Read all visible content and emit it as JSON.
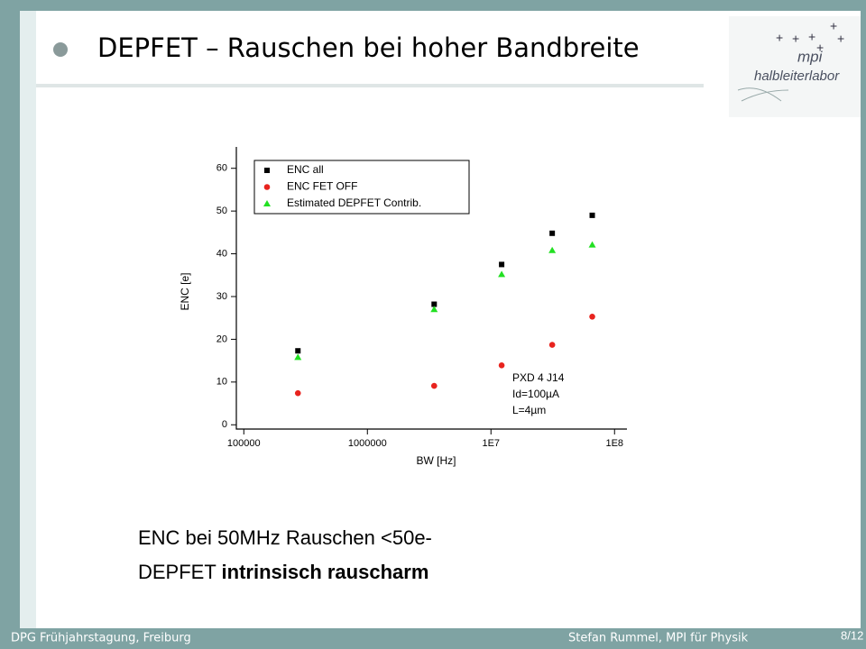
{
  "slide": {
    "title": "DEPFET – Rauschen bei hoher Bandbreite",
    "logo": {
      "line1": "mpi",
      "line2": "halbleiterlabor"
    },
    "body": [
      {
        "text": "ENC bei 50MHz  Rauschen  <50e-"
      },
      {
        "text": "DEPFET ",
        "bold": "intrinsisch rauscharm"
      }
    ],
    "footer": {
      "left": "DPG Frühjahrstagung, Freiburg",
      "right": "Stefan Rummel, MPI für Physik",
      "page": "8/12"
    }
  },
  "chart_data": {
    "type": "scatter",
    "xlabel": "BW [Hz]",
    "ylabel": "ENC [e]",
    "xscale": "log",
    "xlim": [
      87000,
      126000000
    ],
    "ylim": [
      -1,
      65
    ],
    "xticks": [
      100000,
      1000000,
      {
        "value": 10000000,
        "label": "1E7"
      },
      {
        "value": 100000000,
        "label": "1E8"
      }
    ],
    "yticks": [
      0,
      10,
      20,
      30,
      40,
      50,
      60
    ],
    "legend": "upper left",
    "annotation": [
      "PXD 4 J14",
      "Id=100µA",
      "L=4µm"
    ],
    "series": [
      {
        "name": "ENC all",
        "color": "#000000",
        "marker": "square",
        "x": [
          274000,
          3470000,
          12200000,
          31300000,
          66000000
        ],
        "values": [
          17.3,
          28.2,
          37.5,
          44.8,
          49
        ]
      },
      {
        "name": "ENC FET OFF",
        "color": "#e8231e",
        "marker": "circle",
        "x": [
          274000,
          3470000,
          12200000,
          31300000,
          66000000
        ],
        "values": [
          7.4,
          9.1,
          13.9,
          18.7,
          25.3
        ]
      },
      {
        "name": "Estimated DEPFET Contrib.",
        "color": "#22e022",
        "marker": "triangle",
        "x": [
          274000,
          3470000,
          12200000,
          31300000,
          66000000
        ],
        "values": [
          15.8,
          27,
          35.2,
          40.8,
          42.1
        ]
      }
    ]
  }
}
